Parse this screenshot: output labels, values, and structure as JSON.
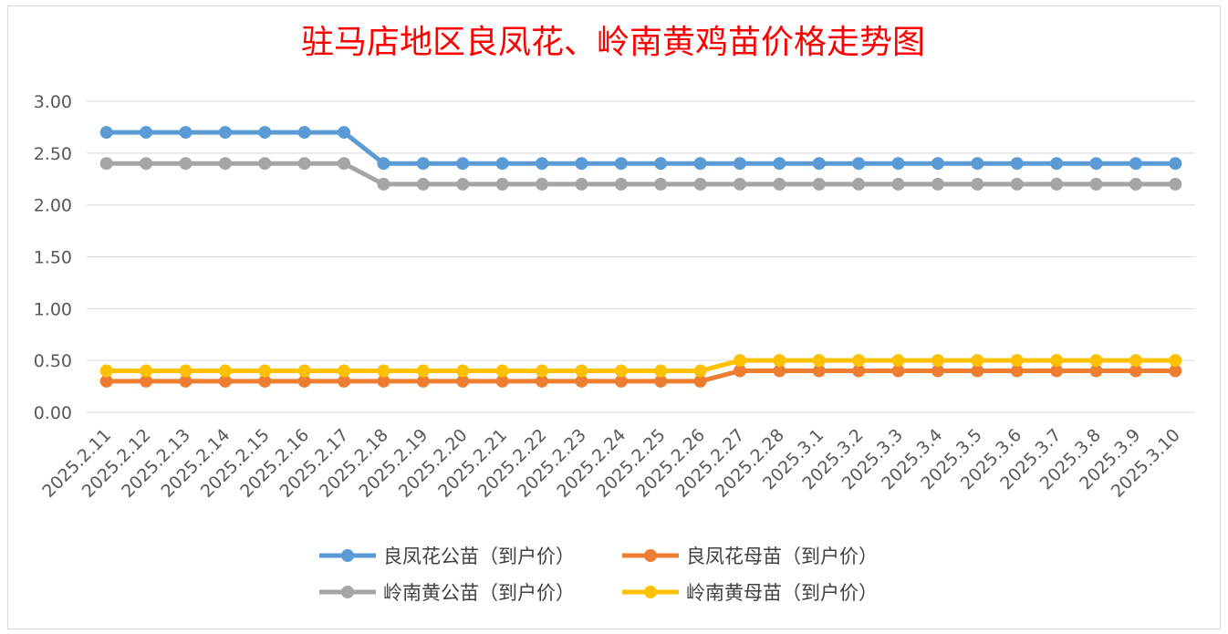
{
  "chart_data": {
    "type": "line",
    "title": "驻马店地区良凤花、岭南黄鸡苗价格走势图",
    "xlabel": "",
    "ylabel": "",
    "ylim": [
      0,
      3
    ],
    "ytick_step": 0.5,
    "ytick_labels": [
      "0.00",
      "0.50",
      "1.00",
      "1.50",
      "2.00",
      "2.50",
      "3.00"
    ],
    "grid": true,
    "legend_position": "bottom",
    "categories": [
      "2025.2.11",
      "2025.2.12",
      "2025.2.13",
      "2025.2.14",
      "2025.2.15",
      "2025.2.16",
      "2025.2.17",
      "2025.2.18",
      "2025.2.19",
      "2025.2.20",
      "2025.2.21",
      "2025.2.22",
      "2025.2.23",
      "2025.2.24",
      "2025.2.25",
      "2025.2.26",
      "2025.2.27",
      "2025.2.28",
      "2025.3.1",
      "2025.3.2",
      "2025.3.3",
      "2025.3.4",
      "2025.3.5",
      "2025.3.6",
      "2025.3.7",
      "2025.3.8",
      "2025.3.9",
      "2025.3.10"
    ],
    "series": [
      {
        "name": "良凤花公苗（到户价）",
        "color": "#5b9bd5",
        "values": [
          2.7,
          2.7,
          2.7,
          2.7,
          2.7,
          2.7,
          2.7,
          2.4,
          2.4,
          2.4,
          2.4,
          2.4,
          2.4,
          2.4,
          2.4,
          2.4,
          2.4,
          2.4,
          2.4,
          2.4,
          2.4,
          2.4,
          2.4,
          2.4,
          2.4,
          2.4,
          2.4,
          2.4
        ]
      },
      {
        "name": "良凤花母苗（到户价）",
        "color": "#ed7d31",
        "values": [
          0.3,
          0.3,
          0.3,
          0.3,
          0.3,
          0.3,
          0.3,
          0.3,
          0.3,
          0.3,
          0.3,
          0.3,
          0.3,
          0.3,
          0.3,
          0.3,
          0.4,
          0.4,
          0.4,
          0.4,
          0.4,
          0.4,
          0.4,
          0.4,
          0.4,
          0.4,
          0.4,
          0.4
        ]
      },
      {
        "name": "岭南黄公苗（到户价）",
        "color": "#a5a5a5",
        "values": [
          2.4,
          2.4,
          2.4,
          2.4,
          2.4,
          2.4,
          2.4,
          2.2,
          2.2,
          2.2,
          2.2,
          2.2,
          2.2,
          2.2,
          2.2,
          2.2,
          2.2,
          2.2,
          2.2,
          2.2,
          2.2,
          2.2,
          2.2,
          2.2,
          2.2,
          2.2,
          2.2,
          2.2
        ]
      },
      {
        "name": "岭南黄母苗（到户价）",
        "color": "#ffc000",
        "values": [
          0.4,
          0.4,
          0.4,
          0.4,
          0.4,
          0.4,
          0.4,
          0.4,
          0.4,
          0.4,
          0.4,
          0.4,
          0.4,
          0.4,
          0.4,
          0.4,
          0.5,
          0.5,
          0.5,
          0.5,
          0.5,
          0.5,
          0.5,
          0.5,
          0.5,
          0.5,
          0.5,
          0.5
        ]
      }
    ]
  }
}
